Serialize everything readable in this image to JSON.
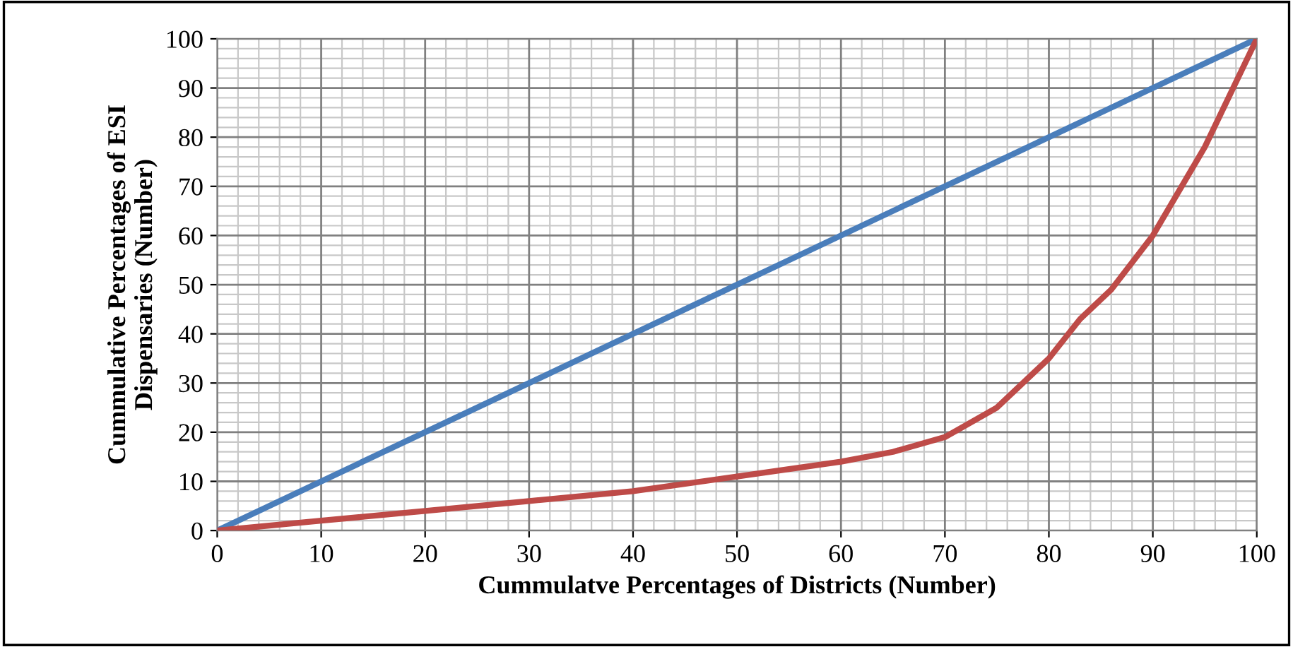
{
  "chart_data": {
    "type": "line",
    "xlabel": "Cummulatve Percentages of Districts (Number)",
    "ylabel": "Cummulative Percentages of ESI\nDispensaries (Number)",
    "series": [
      {
        "color": "#4a7ebb",
        "x": [
          0,
          100
        ],
        "values": [
          0,
          100
        ]
      },
      {
        "color": "#be4b48",
        "x": [
          0,
          10,
          20,
          30,
          40,
          50,
          60,
          65,
          70,
          75,
          80,
          83,
          86,
          90,
          95,
          100
        ],
        "values": [
          0,
          2,
          4,
          6,
          8,
          11,
          14,
          16,
          19,
          25,
          35,
          43,
          49,
          60,
          78,
          100
        ]
      }
    ],
    "xlim": [
      0,
      100
    ],
    "ylim": [
      0,
      100
    ],
    "xticks": [
      0,
      10,
      20,
      30,
      40,
      50,
      60,
      70,
      80,
      90,
      100
    ],
    "yticks": [
      0,
      10,
      20,
      30,
      40,
      50,
      60,
      70,
      80,
      90,
      100
    ],
    "grid": true,
    "marker": "none",
    "line_style": "solid"
  }
}
